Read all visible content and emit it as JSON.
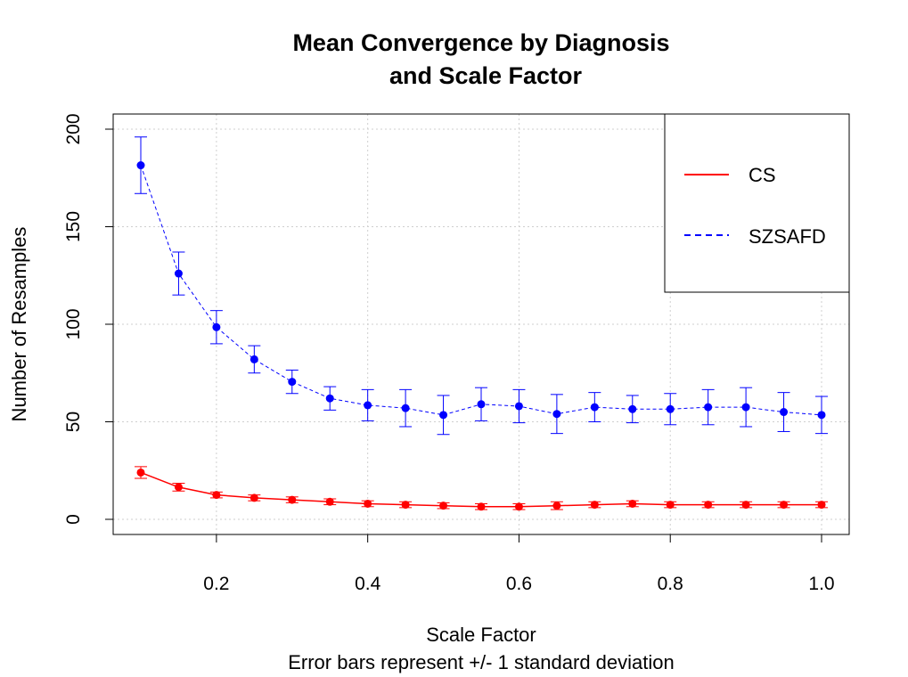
{
  "chart_data": {
    "type": "line",
    "title": [
      "Mean Convergence by Diagnosis",
      "and Scale Factor"
    ],
    "xlabel": "Scale Factor",
    "subtitle": "Error bars represent +/- 1 standard deviation",
    "ylabel": "Number of Resamples",
    "xlim": [
      0.1,
      1.0
    ],
    "ylim": [
      0,
      200
    ],
    "xticks": [
      0.2,
      0.4,
      0.6,
      0.8,
      1.0
    ],
    "xtick_labels": [
      "0.2",
      "0.4",
      "0.6",
      "0.8",
      "1.0"
    ],
    "yticks": [
      0,
      50,
      100,
      150,
      200
    ],
    "ytick_labels": [
      "0",
      "50",
      "100",
      "150",
      "200"
    ],
    "grid": true,
    "legend_position": "top-right",
    "x": [
      0.1,
      0.15,
      0.2,
      0.25,
      0.3,
      0.35,
      0.4,
      0.45,
      0.5,
      0.55,
      0.6,
      0.65,
      0.7,
      0.75,
      0.8,
      0.85,
      0.9,
      0.95,
      1.0
    ],
    "series": [
      {
        "name": "CS",
        "color": "#ff0000",
        "line_style": "solid",
        "values": [
          24,
          16.5,
          12.5,
          11,
          10,
          9,
          8,
          7.5,
          7,
          6.5,
          6.5,
          7,
          7.5,
          8,
          7.5,
          7.5,
          7.5,
          7.5,
          7.5
        ],
        "sd": [
          3,
          2,
          1.5,
          1.5,
          1.5,
          1.5,
          1.5,
          1.5,
          1.5,
          1.5,
          1.5,
          2,
          1.5,
          1.5,
          1.5,
          1.5,
          1.5,
          1.5,
          1.5
        ]
      },
      {
        "name": "SZSAFD",
        "color": "#0000ff",
        "line_style": "dashed",
        "values": [
          181.5,
          126,
          98.5,
          82,
          70.5,
          62,
          58.5,
          57,
          53.5,
          59,
          58,
          54,
          57.5,
          56.5,
          56.5,
          57.5,
          57.5,
          55,
          53.5
        ],
        "sd": [
          14.5,
          11,
          8.5,
          7,
          6,
          6,
          8,
          9.5,
          10,
          8.5,
          8.5,
          10,
          7.5,
          7,
          8,
          9,
          10,
          10,
          9.5
        ]
      }
    ]
  }
}
